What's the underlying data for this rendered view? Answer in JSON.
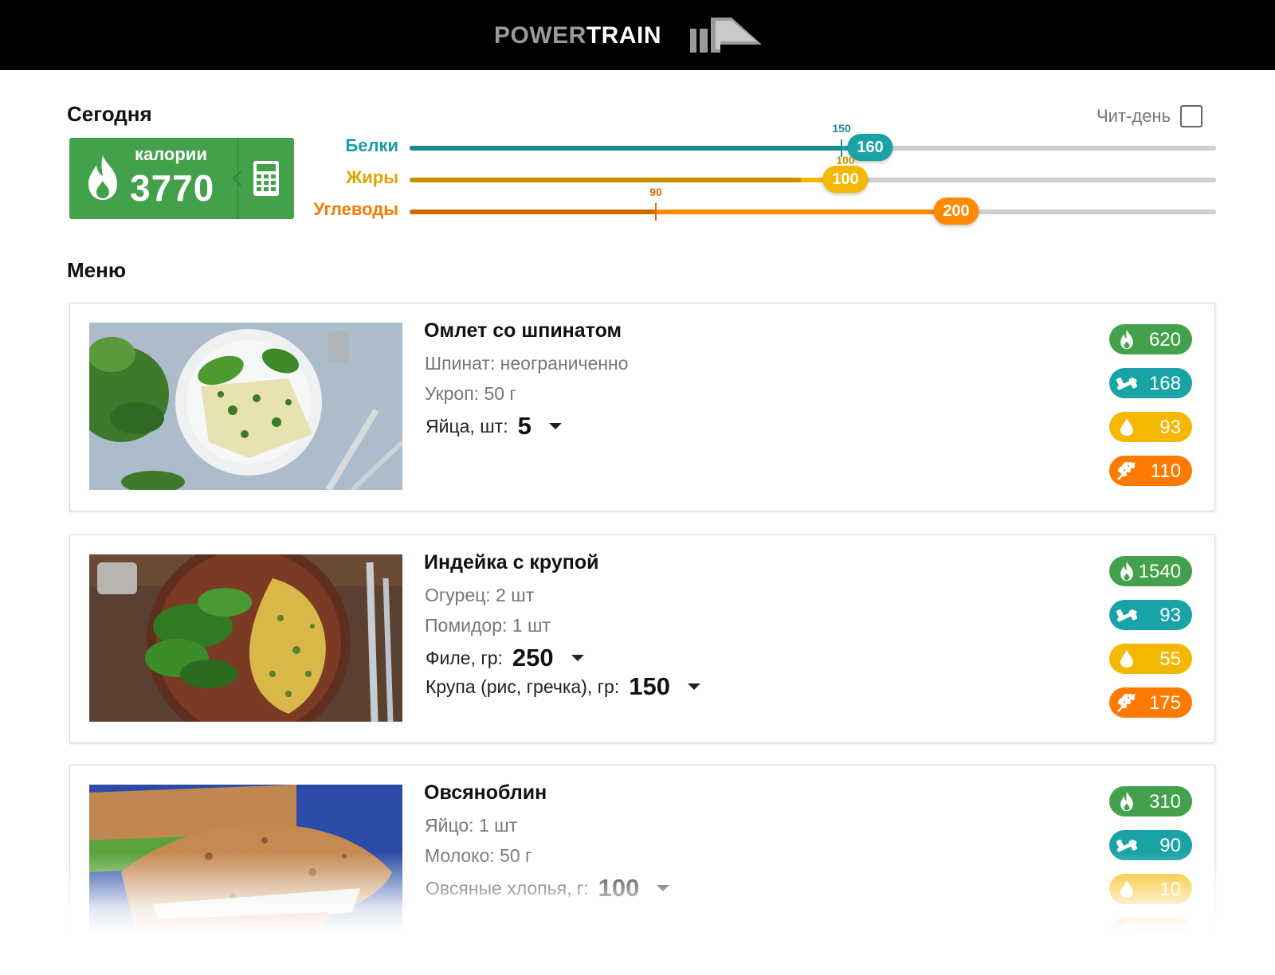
{
  "header": {
    "logo_part1": "POWER",
    "logo_part2": "TRAIN"
  },
  "today": {
    "title": "Сегодня",
    "calories_label": "калории",
    "calories_value": "3770",
    "cheat_day_label": "Чит-день",
    "cheat_day_checked": false
  },
  "macros": [
    {
      "label": "Белки",
      "target": "150",
      "current": "160",
      "target_value": 150,
      "current_value": 160,
      "consumed_value": 150,
      "max": 280,
      "color": "#1aa3a6",
      "dark": "#178b8e",
      "text": "#1a9ea0"
    },
    {
      "label": "Жиры",
      "target": "100",
      "current": "100",
      "target_value": 100,
      "current_value": 100,
      "consumed_value": 90,
      "max": 185,
      "color": "#f5b800",
      "dark": "#c98f00",
      "text": "#e0a400"
    },
    {
      "label": "Углеводы",
      "target": "90",
      "current": "200",
      "target_value": 90,
      "current_value": 200,
      "consumed_value": 90,
      "max": 295,
      "color": "#ff8a00",
      "dark": "#d56a00",
      "text": "#f07e00"
    }
  ],
  "menu": {
    "title": "Меню",
    "meals": [
      {
        "title": "Омлет со шпинатом",
        "ingredients": [
          "Шпинат: неограниченно",
          "Укроп: 50 г"
        ],
        "selectors": [
          {
            "label": "Яйца, шт:",
            "value": "5"
          }
        ],
        "kcal": "620",
        "protein": "168",
        "fat": "93",
        "carbs": "110"
      },
      {
        "title": "Индейка с крупой",
        "ingredients": [
          "Огурец: 2 шт",
          "Помидор: 1 шт"
        ],
        "selectors": [
          {
            "label": "Филе, гр:",
            "value": "250"
          },
          {
            "label": "Крупа (рис, гречка), гр:",
            "value": "150"
          }
        ],
        "kcal": "1540",
        "protein": "93",
        "fat": "55",
        "carbs": "175"
      },
      {
        "title": "Овсяноблин",
        "ingredients": [
          "Яйцо: 1 шт",
          "Молоко: 50 г"
        ],
        "selectors": [
          {
            "label": "Овсяные хлопья, г:",
            "value": "100"
          }
        ],
        "kcal": "310",
        "protein": "90",
        "fat": "10",
        "carbs": ""
      }
    ]
  },
  "colors": {
    "calories": "#43a14b",
    "protein": "#1aa3a6",
    "fat": "#f5b800",
    "carbs": "#ff7a00"
  }
}
